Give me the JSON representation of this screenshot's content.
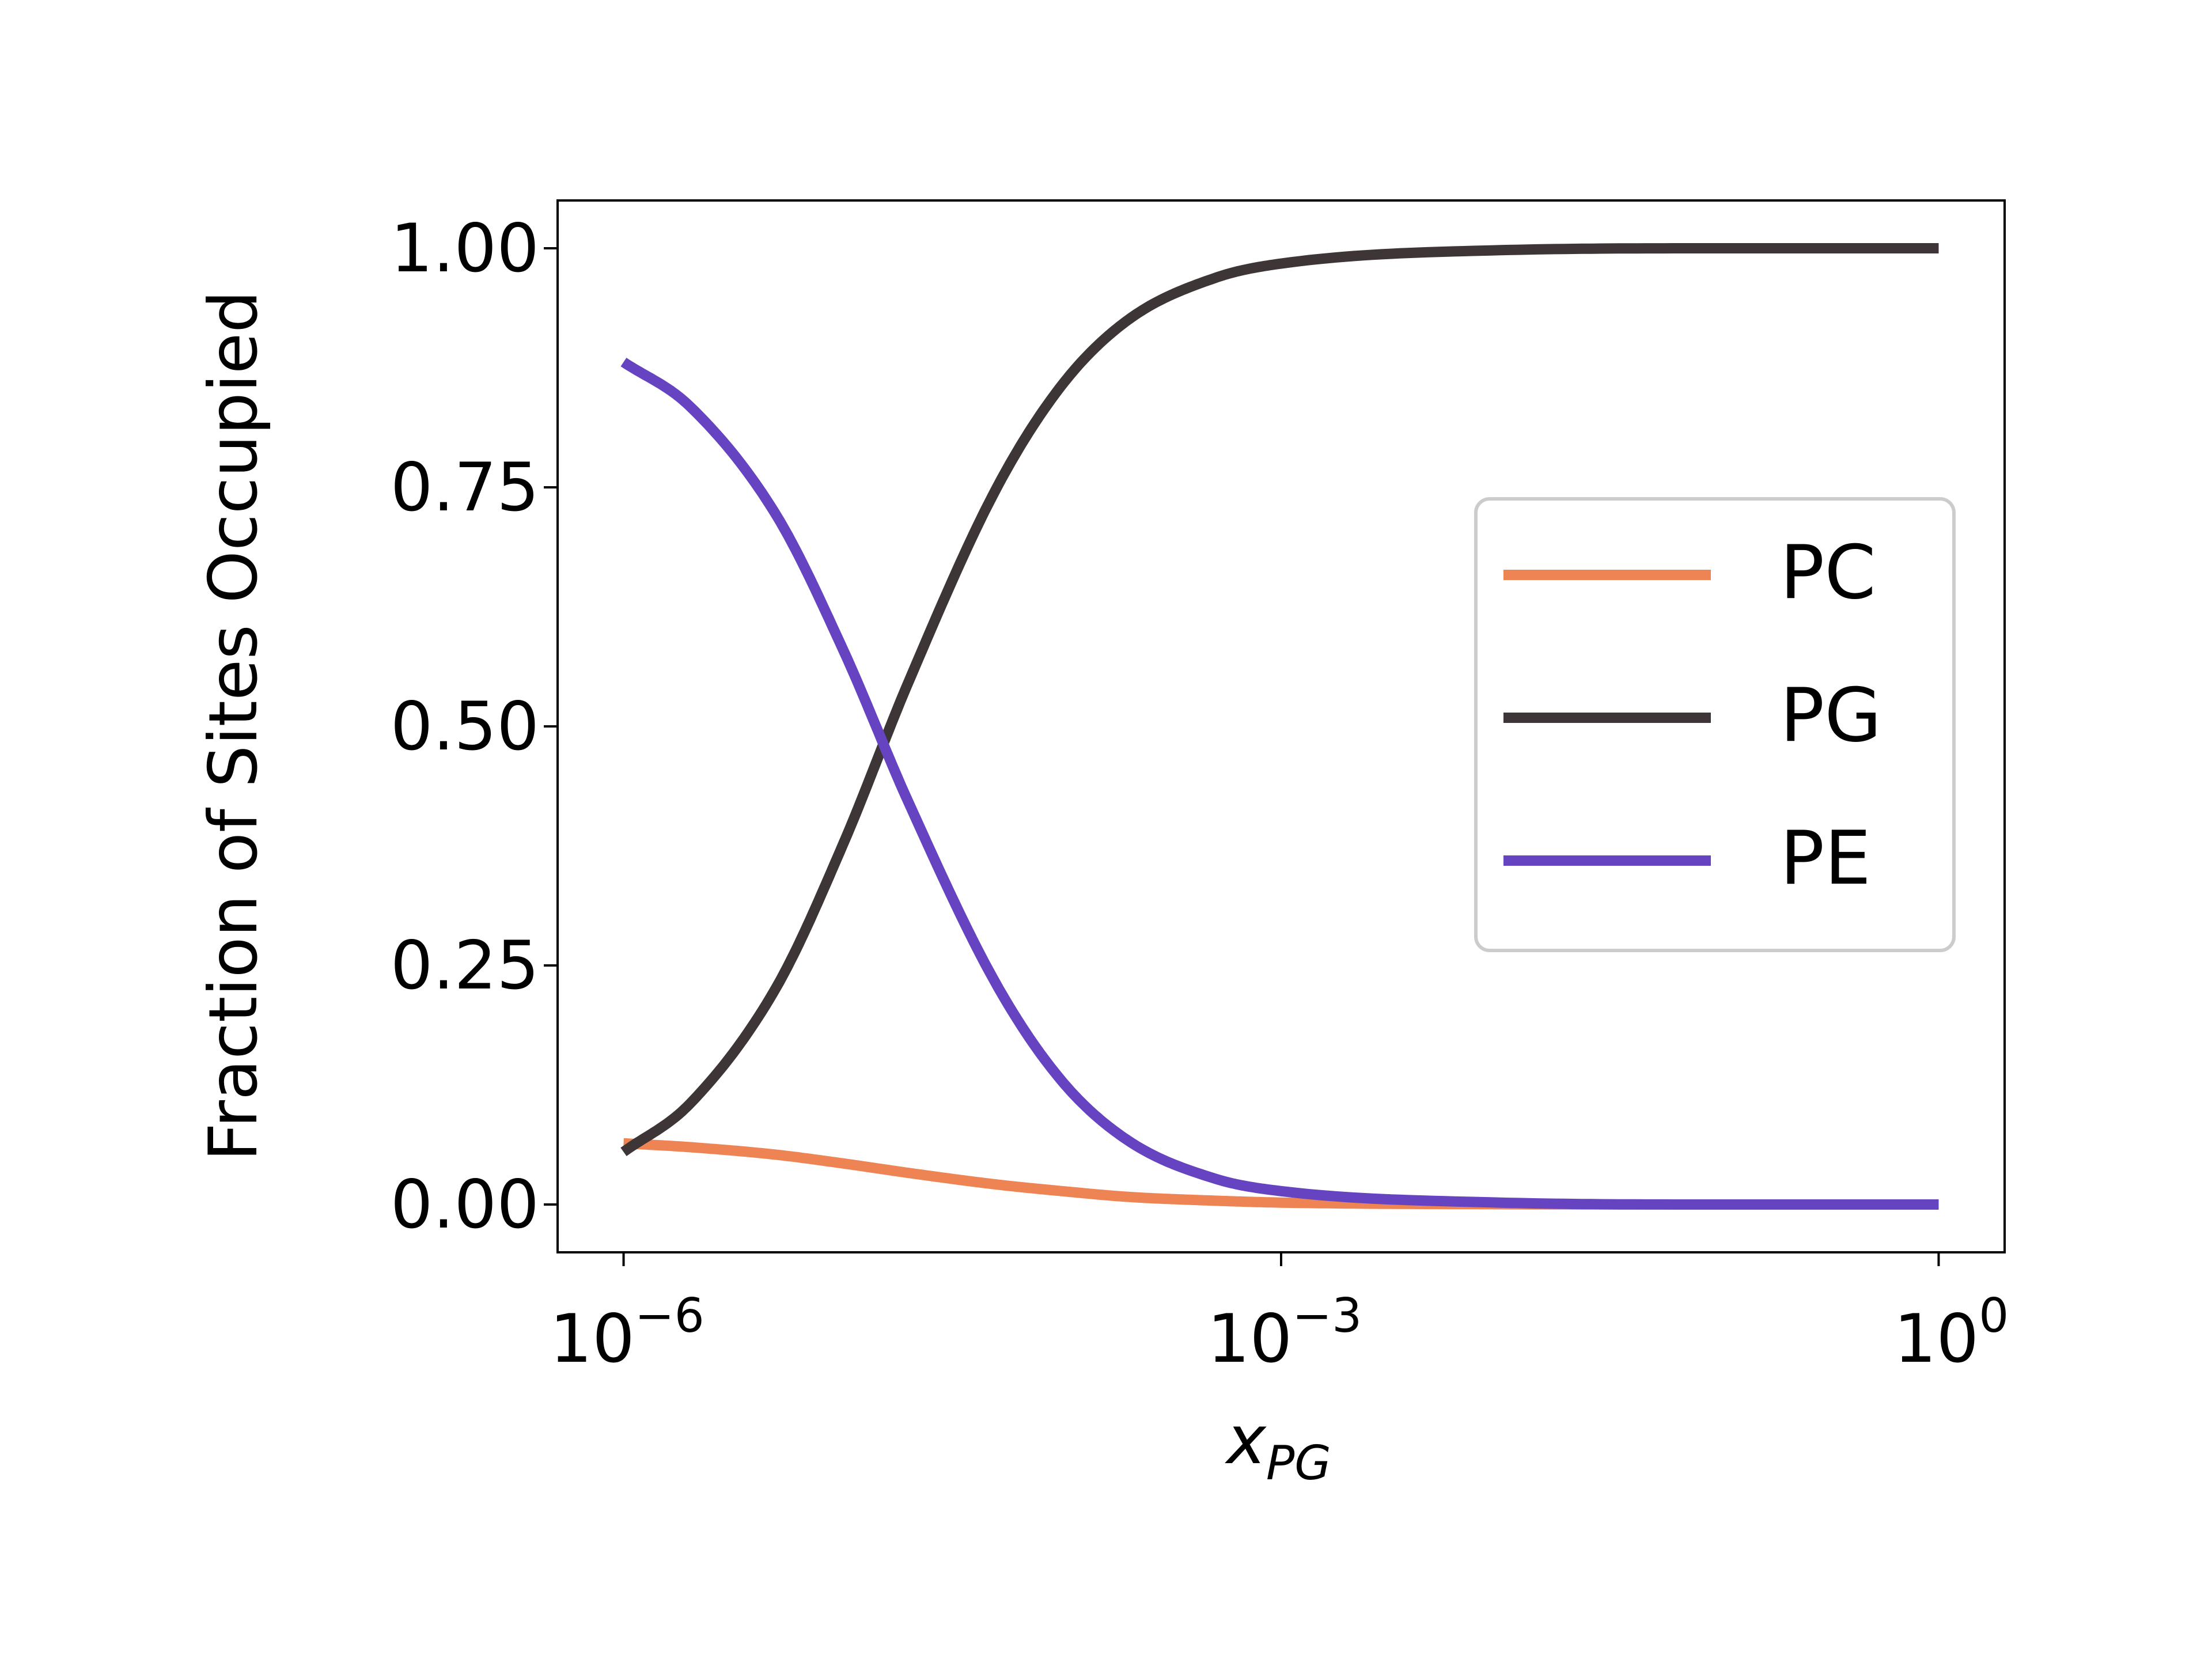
{
  "chart_data": {
    "type": "line",
    "title": "",
    "xlabel": "x",
    "xlabel_subscript": "PG",
    "ylabel": "Fraction of Sites Occupied",
    "xscale": "log",
    "xlim": [
      5e-07,
      2
    ],
    "ylim": [
      -0.05,
      1.05
    ],
    "x_ticks": [
      {
        "value": 1e-06,
        "base": "10",
        "exp": "−6"
      },
      {
        "value": 0.001,
        "base": "10",
        "exp": "−3"
      },
      {
        "value": 1,
        "base": "10",
        "exp": "0"
      }
    ],
    "y_ticks": [
      {
        "value": 0.0,
        "label": "0.00"
      },
      {
        "value": 0.25,
        "label": "0.25"
      },
      {
        "value": 0.5,
        "label": "0.50"
      },
      {
        "value": 0.75,
        "label": "0.75"
      },
      {
        "value": 1.0,
        "label": "1.00"
      }
    ],
    "grid": false,
    "legend_position": "center-right",
    "x": [
      1e-06,
      2e-06,
      5e-06,
      1e-05,
      2e-05,
      5e-05,
      0.0001,
      0.0002,
      0.0005,
      0.001,
      0.01,
      0.1,
      1
    ],
    "series": [
      {
        "name": "PC",
        "color": "#ee8454",
        "values": [
          0.064,
          0.06,
          0.052,
          0.043,
          0.033,
          0.021,
          0.014,
          0.008,
          0.004,
          0.002,
          0.0003,
          0.0,
          0.0
        ]
      },
      {
        "name": "PG",
        "color": "#3d3536",
        "values": [
          0.055,
          0.105,
          0.228,
          0.376,
          0.547,
          0.748,
          0.857,
          0.925,
          0.969,
          0.984,
          0.998,
          1.0,
          1.0
        ]
      },
      {
        "name": "PE",
        "color": "#6643c0",
        "values": [
          0.881,
          0.835,
          0.72,
          0.581,
          0.42,
          0.231,
          0.129,
          0.067,
          0.027,
          0.014,
          0.002,
          0.0,
          0.0
        ]
      }
    ]
  }
}
